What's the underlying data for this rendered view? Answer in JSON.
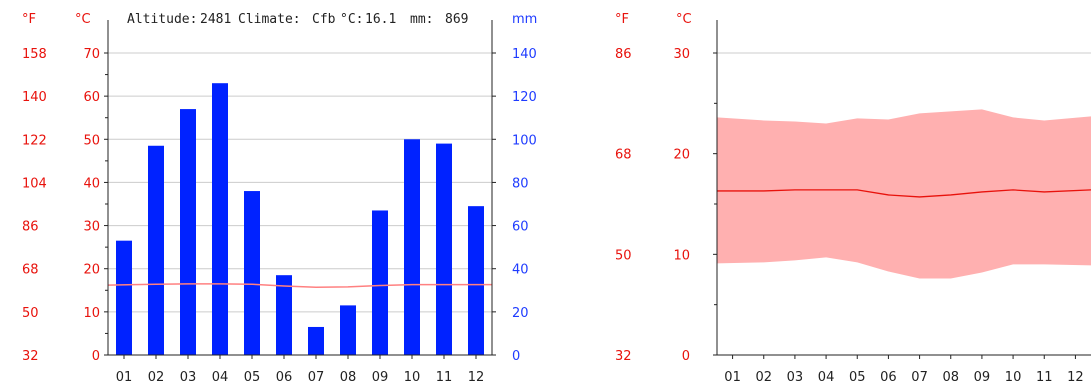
{
  "header": {
    "altitude_label": "Altitude:",
    "altitude_value": "2481",
    "climate_label": "Climate:",
    "climate_value": "Cfb",
    "temp_label": "°C:",
    "temp_value": "16.1",
    "precip_label": "mm:",
    "precip_value": "869"
  },
  "units": {
    "fahrenheit": "°F",
    "celsius": "°C",
    "mm": "mm"
  },
  "colors": {
    "temp": "#e8120c",
    "temp_line_chart1": "#ff8080",
    "temp_band": "#ffb0b0",
    "precip": "#0022ff",
    "axis": "#222222",
    "grid": "#cccccc"
  },
  "chart_data": [
    {
      "type": "bar",
      "categories": [
        "01",
        "02",
        "03",
        "04",
        "05",
        "06",
        "07",
        "08",
        "09",
        "10",
        "11",
        "12"
      ],
      "series": [
        {
          "values": [
            53,
            97,
            114,
            126,
            76,
            37,
            13,
            23,
            67,
            100,
            98,
            69
          ]
        }
      ],
      "line_series": [
        {
          "values": [
            16.2,
            16.4,
            16.5,
            16.5,
            16.4,
            16.0,
            15.7,
            15.8,
            16.1,
            16.3,
            16.3,
            16.3
          ]
        }
      ],
      "ylim_left_c": [
        0,
        70
      ],
      "yticks_left_c": [
        0,
        10,
        20,
        30,
        40,
        50,
        60,
        70
      ],
      "yticks_left_f": [
        32,
        50,
        68,
        86,
        104,
        122,
        140,
        158
      ],
      "ylim_right_mm": [
        0,
        140
      ],
      "yticks_right_mm": [
        0,
        20,
        40,
        60,
        80,
        100,
        120,
        140
      ],
      "grid": true
    },
    {
      "type": "area",
      "categories": [
        "01",
        "02",
        "03",
        "04",
        "05",
        "06",
        "07",
        "08",
        "09",
        "10",
        "11",
        "12"
      ],
      "mean": [
        16.3,
        16.3,
        16.4,
        16.4,
        16.4,
        15.9,
        15.7,
        15.9,
        16.2,
        16.4,
        16.2,
        16.4
      ],
      "max": [
        23.6,
        23.3,
        23.2,
        23.0,
        23.5,
        23.4,
        24.0,
        24.2,
        24.4,
        23.6,
        23.3,
        23.7
      ],
      "min": [
        9.1,
        9.2,
        9.4,
        9.7,
        9.2,
        8.3,
        7.6,
        7.6,
        8.2,
        9.0,
        9.0,
        8.9
      ],
      "ylim_c": [
        0,
        30
      ],
      "yticks_c": [
        0,
        10,
        20,
        30
      ],
      "yticks_f": [
        32,
        50,
        68,
        86
      ],
      "grid": true
    }
  ]
}
